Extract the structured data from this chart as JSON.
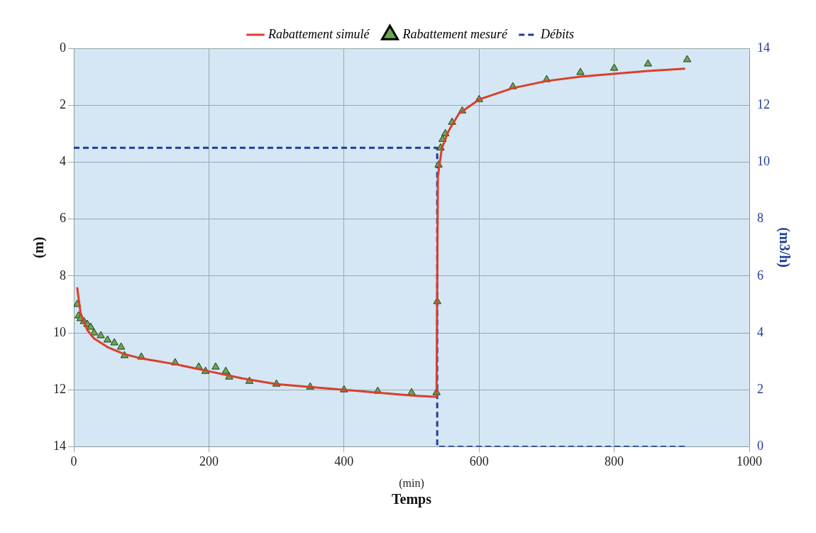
{
  "chart_data": {
    "type": "line",
    "xlabel": "Temps",
    "ylabel": "(m)",
    "y2label": "(m3/h)",
    "annotations": [
      "(min)"
    ],
    "xlim": [
      0,
      1000
    ],
    "xticks": [
      0,
      200,
      400,
      600,
      800,
      1000
    ],
    "ylim": [
      14,
      0
    ],
    "yticks": [
      0,
      2,
      4,
      6,
      8,
      10,
      12,
      14
    ],
    "y2lim": [
      0,
      14
    ],
    "y2ticks": [
      0,
      2,
      4,
      6,
      8,
      10,
      12,
      14
    ],
    "grid": true,
    "legend": "top",
    "series": [
      {
        "name": "Rabattement simulé",
        "type": "line",
        "color": "#d9402b",
        "x": [
          5,
          10,
          20,
          30,
          50,
          75,
          100,
          150,
          200,
          250,
          300,
          350,
          400,
          450,
          500,
          537,
          539,
          545,
          555,
          570,
          600,
          650,
          700,
          750,
          800,
          850,
          905
        ],
        "values": [
          8.4,
          9.3,
          9.9,
          10.2,
          10.5,
          10.75,
          10.9,
          11.1,
          11.35,
          11.6,
          11.8,
          11.9,
          12.0,
          12.1,
          12.2,
          12.25,
          4.5,
          3.5,
          2.9,
          2.3,
          1.8,
          1.4,
          1.15,
          1.0,
          0.9,
          0.8,
          0.72
        ]
      },
      {
        "name": "Rabattement mesuré",
        "type": "scatter",
        "marker": "triangle",
        "color": "#6aa84f",
        "x": [
          5,
          7,
          10,
          15,
          20,
          25,
          30,
          40,
          50,
          60,
          70,
          75,
          100,
          150,
          185,
          195,
          210,
          225,
          230,
          260,
          300,
          350,
          400,
          450,
          500,
          537,
          538,
          540,
          543,
          546,
          550,
          560,
          575,
          600,
          650,
          700,
          750,
          800,
          850,
          908
        ],
        "values": [
          9.0,
          9.4,
          9.5,
          9.6,
          9.7,
          9.8,
          10.0,
          10.1,
          10.25,
          10.35,
          10.5,
          10.8,
          10.85,
          11.05,
          11.2,
          11.35,
          11.2,
          11.35,
          11.55,
          11.7,
          11.8,
          11.9,
          12.0,
          12.05,
          12.1,
          12.1,
          8.9,
          4.1,
          3.5,
          3.2,
          3.0,
          2.6,
          2.2,
          1.8,
          1.35,
          1.1,
          0.85,
          0.7,
          0.55,
          0.4
        ]
      },
      {
        "name": "Débits",
        "type": "line",
        "axis": "y2",
        "line_style": "dashed",
        "color": "#1f3d99",
        "x": [
          0,
          538,
          538,
          905
        ],
        "values": [
          10.5,
          10.5,
          0,
          0
        ]
      }
    ]
  }
}
